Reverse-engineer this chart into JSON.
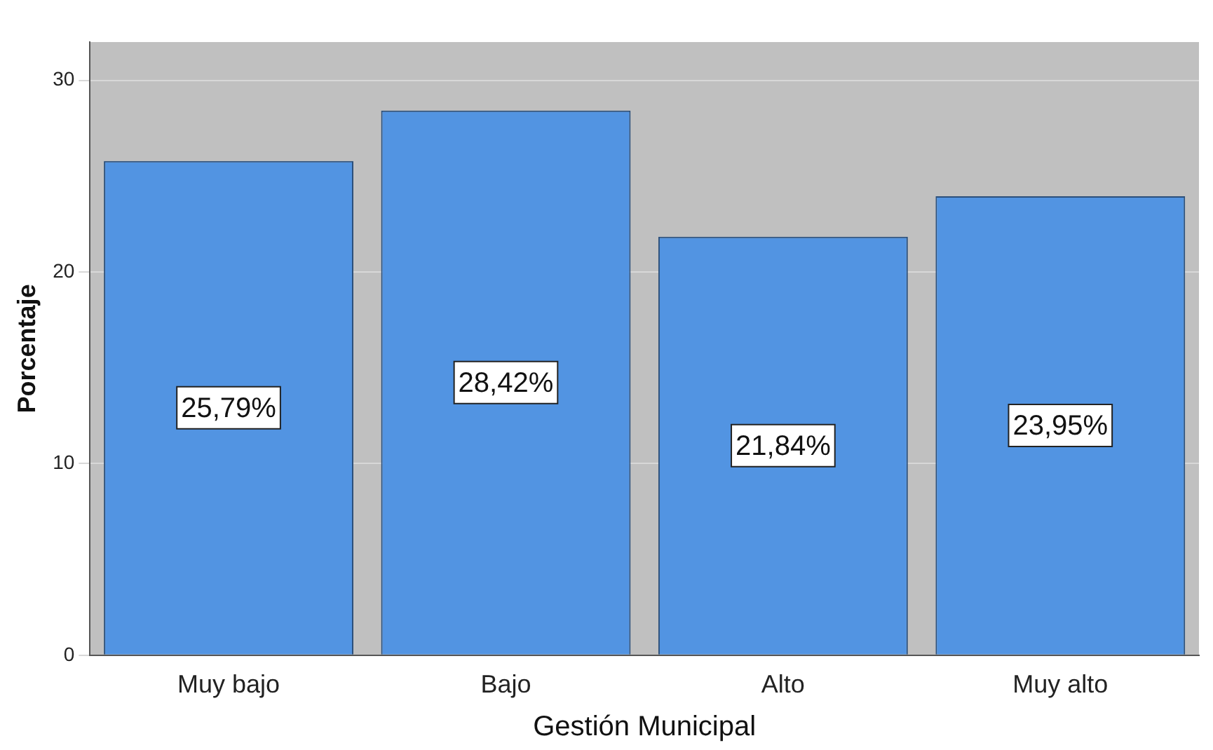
{
  "chart_data": {
    "type": "bar",
    "xlabel": "Gestión Municipal",
    "ylabel": "Porcentaje",
    "categories": [
      "Muy bajo",
      "Bajo",
      "Alto",
      "Muy alto"
    ],
    "values": [
      25.79,
      28.42,
      21.84,
      23.95
    ],
    "value_labels": [
      "25,79%",
      "28,42%",
      "21,84%",
      "23,95%"
    ],
    "color": "#5294e2",
    "ylim": [
      0,
      32
    ],
    "yticks": [
      0,
      10,
      20,
      30
    ],
    "grid": "y",
    "legend": false
  }
}
